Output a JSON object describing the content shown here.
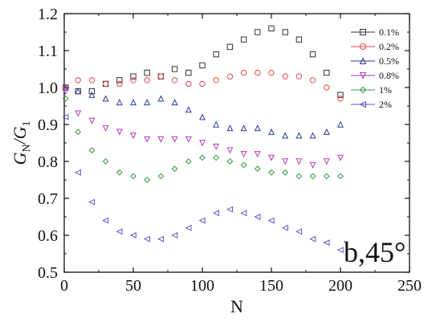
{
  "chart_data": {
    "type": "scatter",
    "xlabel": "N",
    "ylabel_main": "G",
    "ylabel_sub1": "N",
    "ylabel_sep": "/G",
    "ylabel_sub2": "1",
    "xlim": [
      0,
      250
    ],
    "ylim": [
      0.5,
      1.2
    ],
    "xticks": [
      "0",
      "50",
      "100",
      "150",
      "200",
      "250"
    ],
    "yticks": [
      "0.5",
      "0.6",
      "0.7",
      "0.8",
      "0.9",
      "1.0",
      "1.1",
      "1.2"
    ],
    "grid": false,
    "legend_position": "top-right",
    "annotation": "b,45°",
    "series": [
      {
        "name": "0.1%",
        "color": "#333333",
        "marker": "square",
        "x": [
          1,
          10,
          20,
          30,
          40,
          50,
          60,
          70,
          80,
          90,
          100,
          110,
          120,
          130,
          140,
          150,
          160,
          170,
          180,
          190,
          200
        ],
        "y": [
          1.0,
          0.99,
          0.99,
          1.01,
          1.02,
          1.03,
          1.04,
          1.03,
          1.05,
          1.04,
          1.06,
          1.09,
          1.11,
          1.13,
          1.15,
          1.16,
          1.15,
          1.13,
          1.09,
          1.04,
          0.98
        ]
      },
      {
        "name": "0.2%",
        "color": "#e8484a",
        "marker": "circle",
        "x": [
          1,
          10,
          20,
          30,
          40,
          50,
          60,
          70,
          80,
          90,
          100,
          110,
          120,
          130,
          140,
          150,
          160,
          170,
          180,
          190,
          200
        ],
        "y": [
          1.0,
          1.02,
          1.02,
          1.01,
          1.01,
          1.02,
          1.02,
          1.03,
          1.02,
          1.01,
          1.01,
          1.02,
          1.03,
          1.04,
          1.04,
          1.04,
          1.03,
          1.03,
          1.02,
          1.0,
          0.97
        ]
      },
      {
        "name": "0.5%",
        "color": "#2b3aa0",
        "marker": "triangle-up",
        "x": [
          1,
          10,
          20,
          30,
          40,
          50,
          60,
          70,
          80,
          90,
          100,
          110,
          120,
          130,
          140,
          150,
          160,
          170,
          180,
          190,
          200
        ],
        "y": [
          1.0,
          0.99,
          0.98,
          0.97,
          0.96,
          0.96,
          0.96,
          0.97,
          0.96,
          0.94,
          0.92,
          0.9,
          0.89,
          0.89,
          0.89,
          0.88,
          0.87,
          0.87,
          0.87,
          0.88,
          0.9
        ]
      },
      {
        "name": "0.8%",
        "color": "#b23ab8",
        "marker": "triangle-down",
        "x": [
          1,
          10,
          20,
          30,
          40,
          50,
          60,
          70,
          80,
          90,
          100,
          110,
          120,
          130,
          140,
          150,
          160,
          170,
          180,
          190,
          200
        ],
        "y": [
          0.99,
          0.93,
          0.91,
          0.89,
          0.88,
          0.87,
          0.86,
          0.86,
          0.86,
          0.86,
          0.85,
          0.84,
          0.83,
          0.82,
          0.82,
          0.81,
          0.8,
          0.8,
          0.79,
          0.8,
          0.81
        ]
      },
      {
        "name": "1%",
        "color": "#2f9a3a",
        "marker": "diamond",
        "x": [
          1,
          10,
          20,
          30,
          40,
          50,
          60,
          70,
          80,
          90,
          100,
          110,
          120,
          130,
          140,
          150,
          160,
          170,
          180,
          190,
          200
        ],
        "y": [
          0.97,
          0.88,
          0.83,
          0.8,
          0.77,
          0.76,
          0.75,
          0.76,
          0.78,
          0.8,
          0.81,
          0.81,
          0.8,
          0.79,
          0.78,
          0.77,
          0.77,
          0.76,
          0.76,
          0.76,
          0.76
        ]
      },
      {
        "name": "2%",
        "color": "#5a58c8",
        "marker": "triangle-left",
        "x": [
          1,
          10,
          20,
          30,
          40,
          50,
          60,
          70,
          80,
          90,
          100,
          110,
          120,
          130,
          140,
          150,
          160,
          170,
          180,
          190,
          200
        ],
        "y": [
          0.92,
          0.77,
          0.69,
          0.64,
          0.61,
          0.6,
          0.59,
          0.59,
          0.6,
          0.62,
          0.64,
          0.66,
          0.67,
          0.66,
          0.65,
          0.64,
          0.62,
          0.61,
          0.59,
          0.58,
          0.56
        ]
      }
    ]
  }
}
